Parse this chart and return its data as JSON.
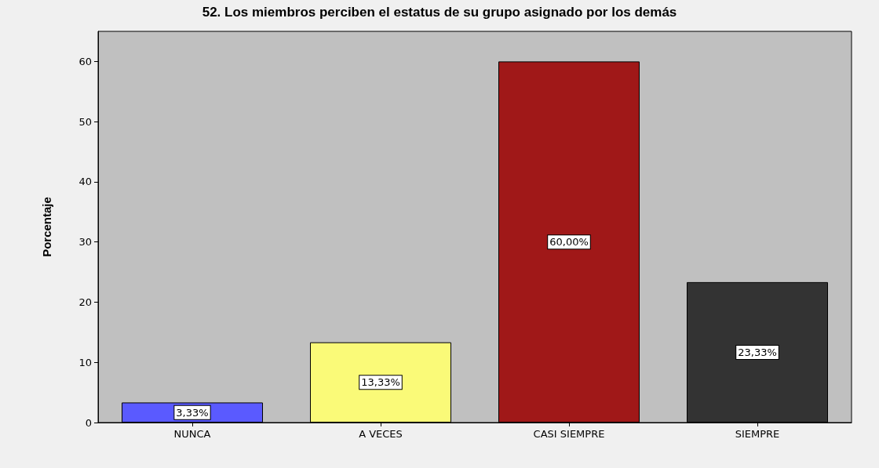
{
  "chart_data": {
    "type": "bar",
    "title": "52. Los miembros perciben el estatus de su grupo asignado por los demás",
    "ylabel": "Porcentaje",
    "categories": [
      "NUNCA",
      "A VECES",
      "CASI SIEMPRE",
      "SIEMPRE"
    ],
    "values": [
      3.33,
      13.33,
      60.0,
      23.33
    ],
    "colors": [
      "#5a5aff",
      "#fafa78",
      "#a01818",
      "#333333"
    ],
    "value_labels": [
      "3,33%",
      "13,33%",
      "60,00%",
      "23,33%"
    ],
    "ylim": [
      0,
      65
    ],
    "yticks": [
      0,
      10,
      20,
      30,
      40,
      50,
      60
    ],
    "grid": false
  }
}
